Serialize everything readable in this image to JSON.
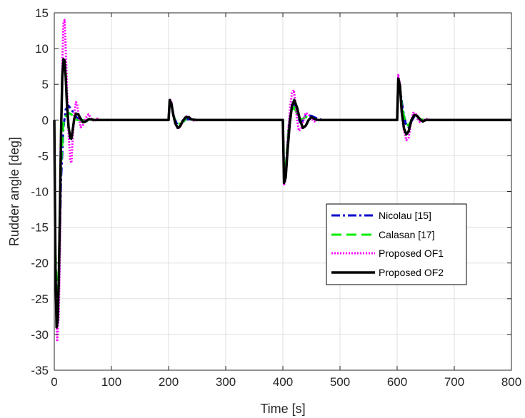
{
  "chart_data": {
    "type": "line",
    "title": "",
    "xlabel": "Time [s]",
    "ylabel": "Rudder angle [deg]",
    "xlim": [
      0,
      800
    ],
    "ylim": [
      -35,
      15
    ],
    "xticks": [
      0,
      100,
      200,
      300,
      400,
      500,
      600,
      700,
      800
    ],
    "yticks": [
      15,
      10,
      5,
      0,
      -5,
      -10,
      -15,
      -20,
      -25,
      -30,
      -35
    ],
    "grid": true,
    "legend_position": "lower-right",
    "series": [
      {
        "name": "Nicolau [15]",
        "color": "#0000cc",
        "dash": "dashdot",
        "x": [
          0,
          2,
          5,
          8,
          12,
          16,
          20,
          25,
          30,
          35,
          40,
          50,
          60,
          70,
          80,
          200,
          202,
          205,
          210,
          215,
          222,
          230,
          240,
          250,
          260,
          400,
          402,
          405,
          410,
          415,
          420,
          425,
          430,
          435,
          440,
          450,
          460,
          470,
          600,
          602,
          605,
          610,
          615,
          620,
          625,
          630,
          635,
          640,
          650,
          660,
          670,
          800
        ],
        "y": [
          0,
          -20,
          -28,
          -22,
          -8,
          -1,
          1.5,
          2,
          1.5,
          0.8,
          0.3,
          -0.2,
          0.1,
          0,
          0,
          0,
          2.6,
          2.2,
          0.3,
          -0.6,
          -0.6,
          0.1,
          0.1,
          0,
          0,
          0,
          -8,
          -7,
          -1,
          1.5,
          2.2,
          1,
          -0.3,
          -0.1,
          0.6,
          0.6,
          0.2,
          0,
          0,
          5.5,
          4.5,
          1.5,
          -0.5,
          -1,
          -0.2,
          0.5,
          0.2,
          0,
          0,
          0,
          0,
          0
        ]
      },
      {
        "name": "Calasan [17]",
        "color": "#00ee00",
        "dash": "dashed",
        "x": [
          0,
          2,
          5,
          8,
          12,
          16,
          20,
          25,
          30,
          35,
          40,
          50,
          60,
          70,
          200,
          202,
          205,
          210,
          215,
          222,
          230,
          240,
          250,
          400,
          402,
          405,
          410,
          415,
          420,
          425,
          430,
          440,
          450,
          460,
          600,
          602,
          605,
          610,
          615,
          620,
          625,
          630,
          640,
          650,
          660,
          800
        ],
        "y": [
          0,
          -18,
          -27,
          -20,
          -6,
          -0.5,
          0.5,
          1,
          0.8,
          0.3,
          0,
          0,
          0,
          0,
          0,
          2.5,
          2,
          0.3,
          -0.5,
          -0.5,
          0.1,
          0,
          0,
          0,
          -7.5,
          -6.5,
          -1,
          1.2,
          1.8,
          0.8,
          0,
          0.4,
          0.3,
          0,
          0,
          5.2,
          4,
          1.2,
          -0.4,
          -0.8,
          0,
          0.3,
          0.1,
          0,
          0,
          0
        ]
      },
      {
        "name": "Proposed OF1",
        "color": "#ff00ff",
        "dash": "dotted",
        "x": [
          0,
          2,
          5,
          8,
          10,
          12,
          14,
          16,
          18,
          20,
          22,
          25,
          28,
          30,
          32,
          35,
          38,
          40,
          43,
          46,
          50,
          55,
          60,
          65,
          70,
          75,
          80,
          90,
          200,
          202,
          205,
          208,
          212,
          216,
          220,
          225,
          230,
          235,
          240,
          245,
          250,
          260,
          400,
          402,
          404,
          407,
          410,
          413,
          416,
          419,
          422,
          425,
          428,
          432,
          436,
          440,
          445,
          450,
          455,
          460,
          600,
          602,
          605,
          608,
          612,
          616,
          620,
          624,
          628,
          632,
          636,
          640,
          645,
          650,
          655,
          660,
          800
        ],
        "y": [
          0,
          -22,
          -31,
          -27,
          -18,
          -3,
          8,
          13.5,
          14,
          10,
          5,
          -2,
          -5.5,
          -6,
          -3,
          1,
          2.5,
          2.2,
          0.5,
          -1,
          -0.8,
          0.3,
          0.8,
          0.2,
          -0.2,
          0.2,
          0,
          0,
          0,
          3,
          2.5,
          1,
          -0.5,
          -1.2,
          -1,
          -0.2,
          0.5,
          0.5,
          0.1,
          -0.1,
          0,
          0,
          0,
          -9,
          -8.8,
          -5,
          -1,
          2,
          3.8,
          4.2,
          2.5,
          0,
          -1.5,
          -1.2,
          0,
          1,
          0.8,
          0.2,
          -0.2,
          0,
          0,
          6.3,
          5,
          1,
          -1.5,
          -2.8,
          -2.5,
          -0.5,
          1,
          1,
          0.2,
          -0.3,
          -0.1,
          0.2,
          0.1,
          0,
          0
        ]
      },
      {
        "name": "Proposed OF2",
        "color": "#000000",
        "dash": "solid",
        "x": [
          0,
          2,
          4,
          6,
          8,
          10,
          12,
          14,
          16,
          18,
          20,
          22,
          25,
          28,
          30,
          32,
          35,
          38,
          42,
          46,
          50,
          55,
          60,
          65,
          70,
          80,
          200,
          202,
          205,
          208,
          212,
          216,
          220,
          225,
          230,
          235,
          240,
          250,
          400,
          402,
          405,
          408,
          412,
          416,
          420,
          425,
          430,
          435,
          440,
          445,
          450,
          460,
          600,
          602,
          605,
          608,
          612,
          616,
          620,
          625,
          630,
          635,
          640,
          645,
          650,
          660,
          800
        ],
        "y": [
          0,
          -20,
          -29,
          -28,
          -22,
          -12,
          -1,
          6,
          8.5,
          8.3,
          6,
          2.5,
          -1,
          -2.5,
          -2.6,
          -1.5,
          0.2,
          0.9,
          0.8,
          0.2,
          -0.3,
          -0.2,
          0.1,
          0.1,
          0,
          0,
          0,
          2.8,
          2.3,
          0.8,
          -0.5,
          -1.1,
          -0.9,
          -0.1,
          0.4,
          0.4,
          0.1,
          0,
          0,
          -8.8,
          -8,
          -4.5,
          -0.5,
          2,
          2.8,
          1.7,
          0,
          -1.1,
          -0.8,
          0,
          0.4,
          0,
          0,
          5.8,
          4.8,
          1.2,
          -1.2,
          -2,
          -1.6,
          0,
          0.7,
          0.6,
          0.1,
          -0.2,
          0,
          0,
          0
        ]
      }
    ]
  }
}
